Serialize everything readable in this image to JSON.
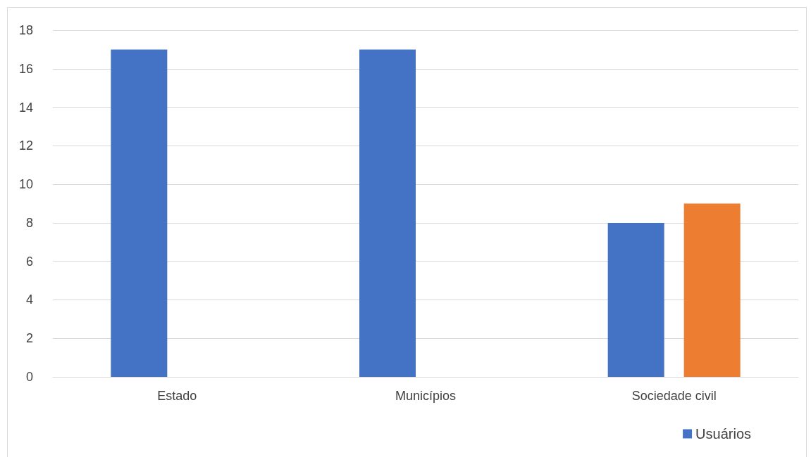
{
  "chart_data": {
    "type": "bar",
    "categories": [
      "Estado",
      "Municípios",
      "Sociedade civil"
    ],
    "series": [
      {
        "name": "Usuários",
        "color": "#4472c4",
        "values": [
          17,
          17,
          8
        ]
      },
      {
        "color": "#ed7d31",
        "values": [
          null,
          null,
          9
        ]
      }
    ],
    "ylim": [
      0,
      18
    ],
    "yticks": [
      0,
      2,
      4,
      6,
      8,
      10,
      12,
      14,
      16,
      18
    ],
    "grid": "y",
    "legend": "bottom right"
  }
}
